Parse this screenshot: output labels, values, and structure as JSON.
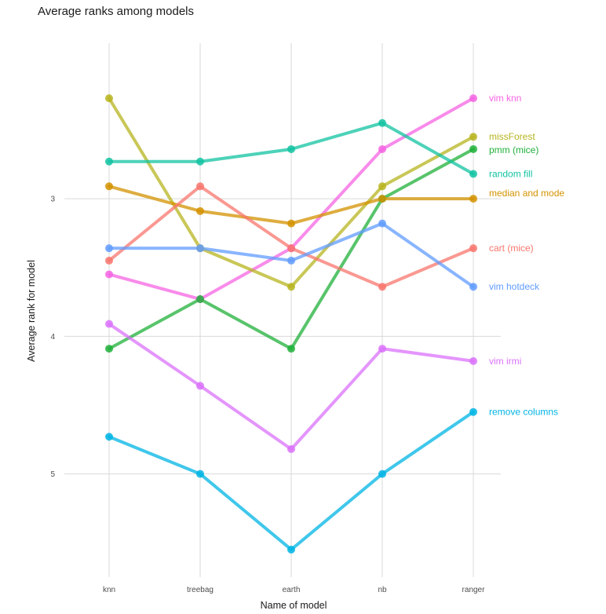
{
  "chart_data": {
    "type": "line",
    "title": "Average ranks among models",
    "xlabel": "Name of model",
    "ylabel": "Average rank for model",
    "categories": [
      "knn",
      "treebag",
      "earth",
      "nb",
      "ranger"
    ],
    "ylim": [
      1.75,
      5.75
    ],
    "y_reversed": true,
    "yticks": [
      3,
      4,
      5
    ],
    "grid": true,
    "legend": "direct labels at right end of lines",
    "series": [
      {
        "name": "vim knn",
        "color": "#f564e3",
        "values": [
          3.55,
          3.73,
          3.36,
          2.64,
          2.27
        ]
      },
      {
        "name": "missForest",
        "color": "#b7b41f",
        "values": [
          2.27,
          3.36,
          3.64,
          2.91,
          2.55
        ]
      },
      {
        "name": "pmm (mice)",
        "color": "#20b03a",
        "values": [
          4.09,
          3.73,
          4.09,
          3.0,
          2.64
        ]
      },
      {
        "name": "random fill",
        "color": "#12c3a2",
        "values": [
          2.73,
          2.73,
          2.64,
          2.45,
          2.82
        ]
      },
      {
        "name": "median and mode",
        "color": "#d39200",
        "values": [
          2.91,
          3.09,
          3.18,
          3.0,
          3.0
        ]
      },
      {
        "name": "cart (mice)",
        "color": "#f8766d",
        "values": [
          3.45,
          2.91,
          3.36,
          3.64,
          3.36
        ]
      },
      {
        "name": "vim hotdeck",
        "color": "#619cff",
        "values": [
          3.36,
          3.36,
          3.45,
          3.18,
          3.64
        ]
      },
      {
        "name": "vim irmi",
        "color": "#db72fb",
        "values": [
          3.91,
          4.36,
          4.82,
          4.09,
          4.18
        ]
      },
      {
        "name": "remove columns",
        "color": "#00b4e4",
        "values": [
          4.73,
          5.0,
          5.55,
          5.0,
          4.55
        ]
      }
    ]
  }
}
